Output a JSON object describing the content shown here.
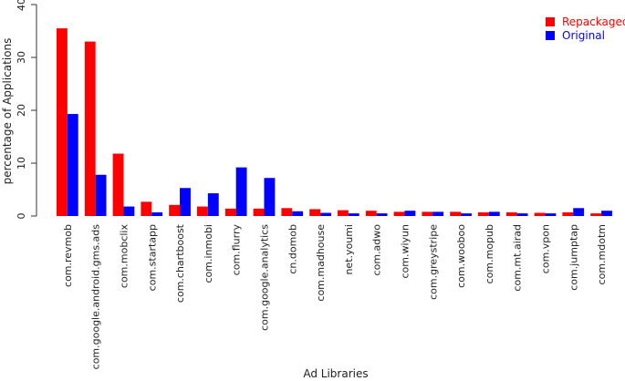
{
  "chart_data": {
    "type": "bar",
    "title": "",
    "xlabel": "Ad Libraries",
    "ylabel": "percentage of Applications",
    "ylim": [
      0,
      40
    ],
    "yticks": [
      0,
      10,
      20,
      30,
      40
    ],
    "grid": false,
    "legend_position": "top-right",
    "categories": [
      "com.revmob",
      "com.google.android.gms.ads",
      "com.mobclix",
      "com.startapp",
      "com.chartboost",
      "com.inmobi",
      "com.flurry",
      "com.google.analytics",
      "cn.domob",
      "com.madhouse",
      "net.youmi",
      "com.adwo",
      "com.wiyun",
      "com.greystripe",
      "com.wooboo",
      "com.mopub",
      "com.mt.airad",
      "com.vpon",
      "com.jumptap",
      "com.mdotm"
    ],
    "series": [
      {
        "name": "Repackaged",
        "color": "#ff0000",
        "values": [
          35.5,
          33.0,
          11.8,
          2.7,
          2.1,
          1.8,
          1.4,
          1.4,
          1.5,
          1.3,
          1.1,
          1.0,
          0.8,
          0.8,
          0.8,
          0.7,
          0.7,
          0.6,
          0.7,
          0.5
        ]
      },
      {
        "name": "Original",
        "color": "#0000ff",
        "values": [
          19.3,
          7.8,
          1.8,
          0.7,
          5.3,
          4.3,
          9.2,
          7.2,
          0.9,
          0.6,
          0.5,
          0.5,
          1.0,
          0.8,
          0.5,
          0.8,
          0.5,
          0.5,
          1.5,
          1.0
        ]
      }
    ]
  }
}
